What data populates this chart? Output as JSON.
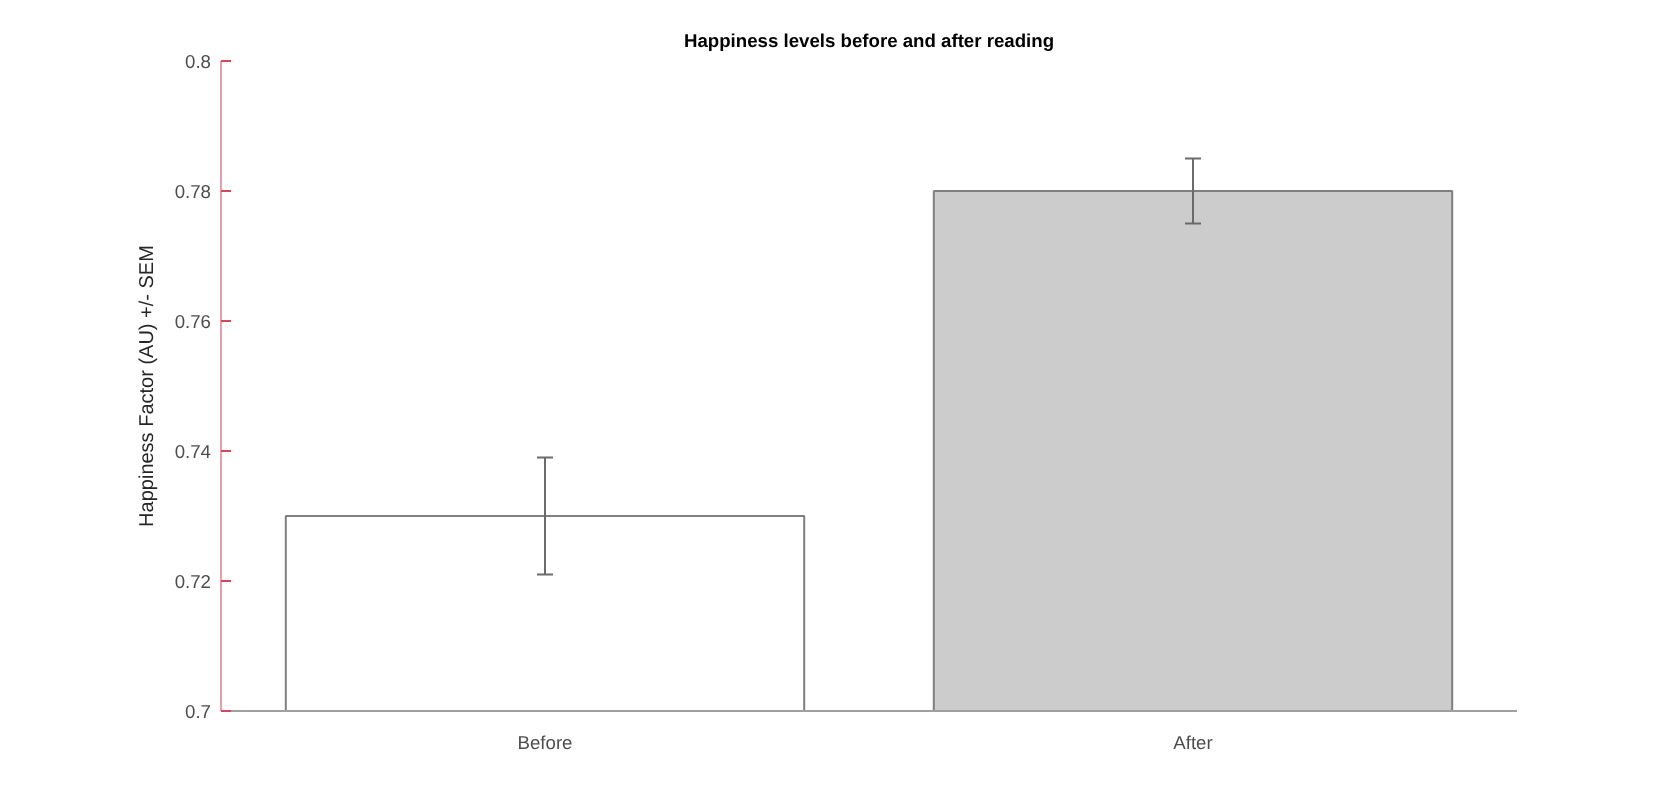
{
  "chart_data": {
    "type": "bar",
    "title": "Happiness levels before and after reading",
    "ylabel": "Happiness Factor (AU) +/- SEM",
    "categories": [
      "Before",
      "After"
    ],
    "values": [
      0.73,
      0.78
    ],
    "errors": [
      0.009,
      0.005
    ],
    "colors": [
      "#ffffff",
      "#cccccc"
    ],
    "ylim": [
      0.7,
      0.8
    ],
    "yticks": [
      0.7,
      0.72,
      0.74,
      0.76,
      0.78,
      0.8
    ],
    "grid": false
  }
}
